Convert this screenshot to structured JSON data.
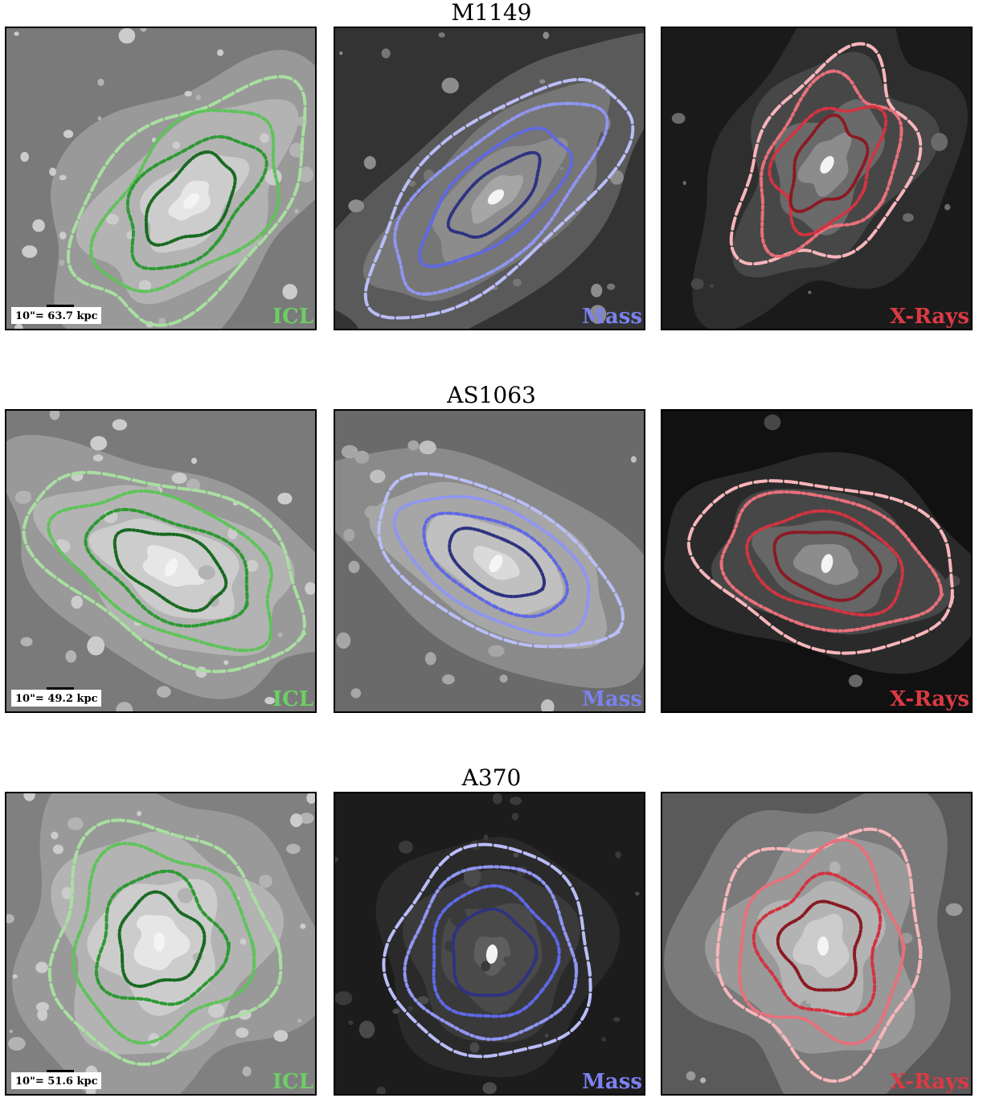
{
  "labels": {
    "icl": "ICL",
    "mass": "Mass",
    "xray": "X-Rays"
  },
  "colors": {
    "icl": [
      "#a8dfa0",
      "#5fc35a",
      "#2e9a34",
      "#1a6a22"
    ],
    "mass": [
      "#b9bdf7",
      "#8f96f2",
      "#5f68e6",
      "#2e3380"
    ],
    "xray": [
      "#f7b5ba",
      "#e8707a",
      "#d23440",
      "#8a1a24"
    ],
    "label_icl": "#6dce66",
    "label_mass": "#7b82ef",
    "label_xray": "#dd3a44"
  },
  "clusters": [
    {
      "name": "M1149",
      "scale": "10\"= 63.7 kpc",
      "icl_bg": [
        "#7a7a7a",
        "#999999",
        "#b3b3b3",
        "#cccccc",
        "#e6e6e6"
      ],
      "mass_bg": [
        "#333333",
        "#5a5a5a",
        "#767676",
        "#8c8c8c",
        "#a6a6a6"
      ],
      "xray_bg": [
        "#1a1a1a",
        "#2e2e2e",
        "#474747",
        "#6a6a6a",
        "#8c8c8c"
      ]
    },
    {
      "name": "AS1063",
      "scale": "10\"= 49.2 kpc",
      "icl_bg": [
        "#7a7a7a",
        "#999999",
        "#b3b3b3",
        "#cccccc",
        "#e6e6e6"
      ],
      "mass_bg": [
        "#6a6a6a",
        "#8a8a8a",
        "#a6a6a6",
        "#c0c0c0",
        "#dadada"
      ],
      "xray_bg": [
        "#111111",
        "#2a2a2a",
        "#474747",
        "#666666",
        "#8c8c8c"
      ]
    },
    {
      "name": "A370",
      "scale": "10\"= 51.6 kpc",
      "icl_bg": [
        "#808080",
        "#999999",
        "#b3b3b3",
        "#cccccc",
        "#e6e6e6"
      ],
      "mass_bg": [
        "#1c1c1c",
        "#2a2a2a",
        "#3a3a3a",
        "#4a4a4a",
        "#5e5e5e"
      ],
      "xray_bg": [
        "#5a5a5a",
        "#7a7a7a",
        "#999999",
        "#b3b3b3",
        "#cccccc"
      ]
    }
  ]
}
